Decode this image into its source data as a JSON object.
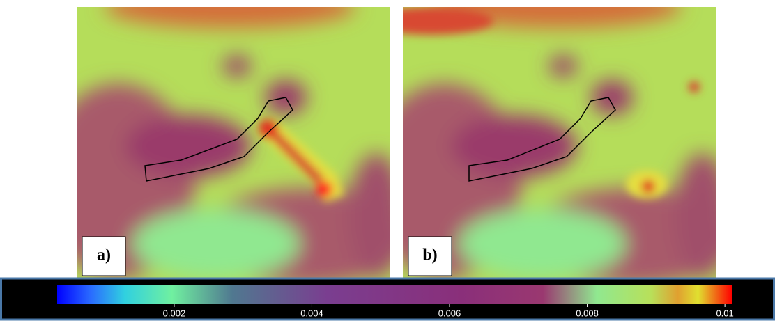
{
  "panels": [
    {
      "label": "a)"
    },
    {
      "label": "b)"
    }
  ],
  "colorbar": {
    "lim": [
      0.0003,
      0.0101
    ],
    "ticks": [
      0.002,
      0.004,
      0.006,
      0.008,
      0.01
    ]
  }
}
